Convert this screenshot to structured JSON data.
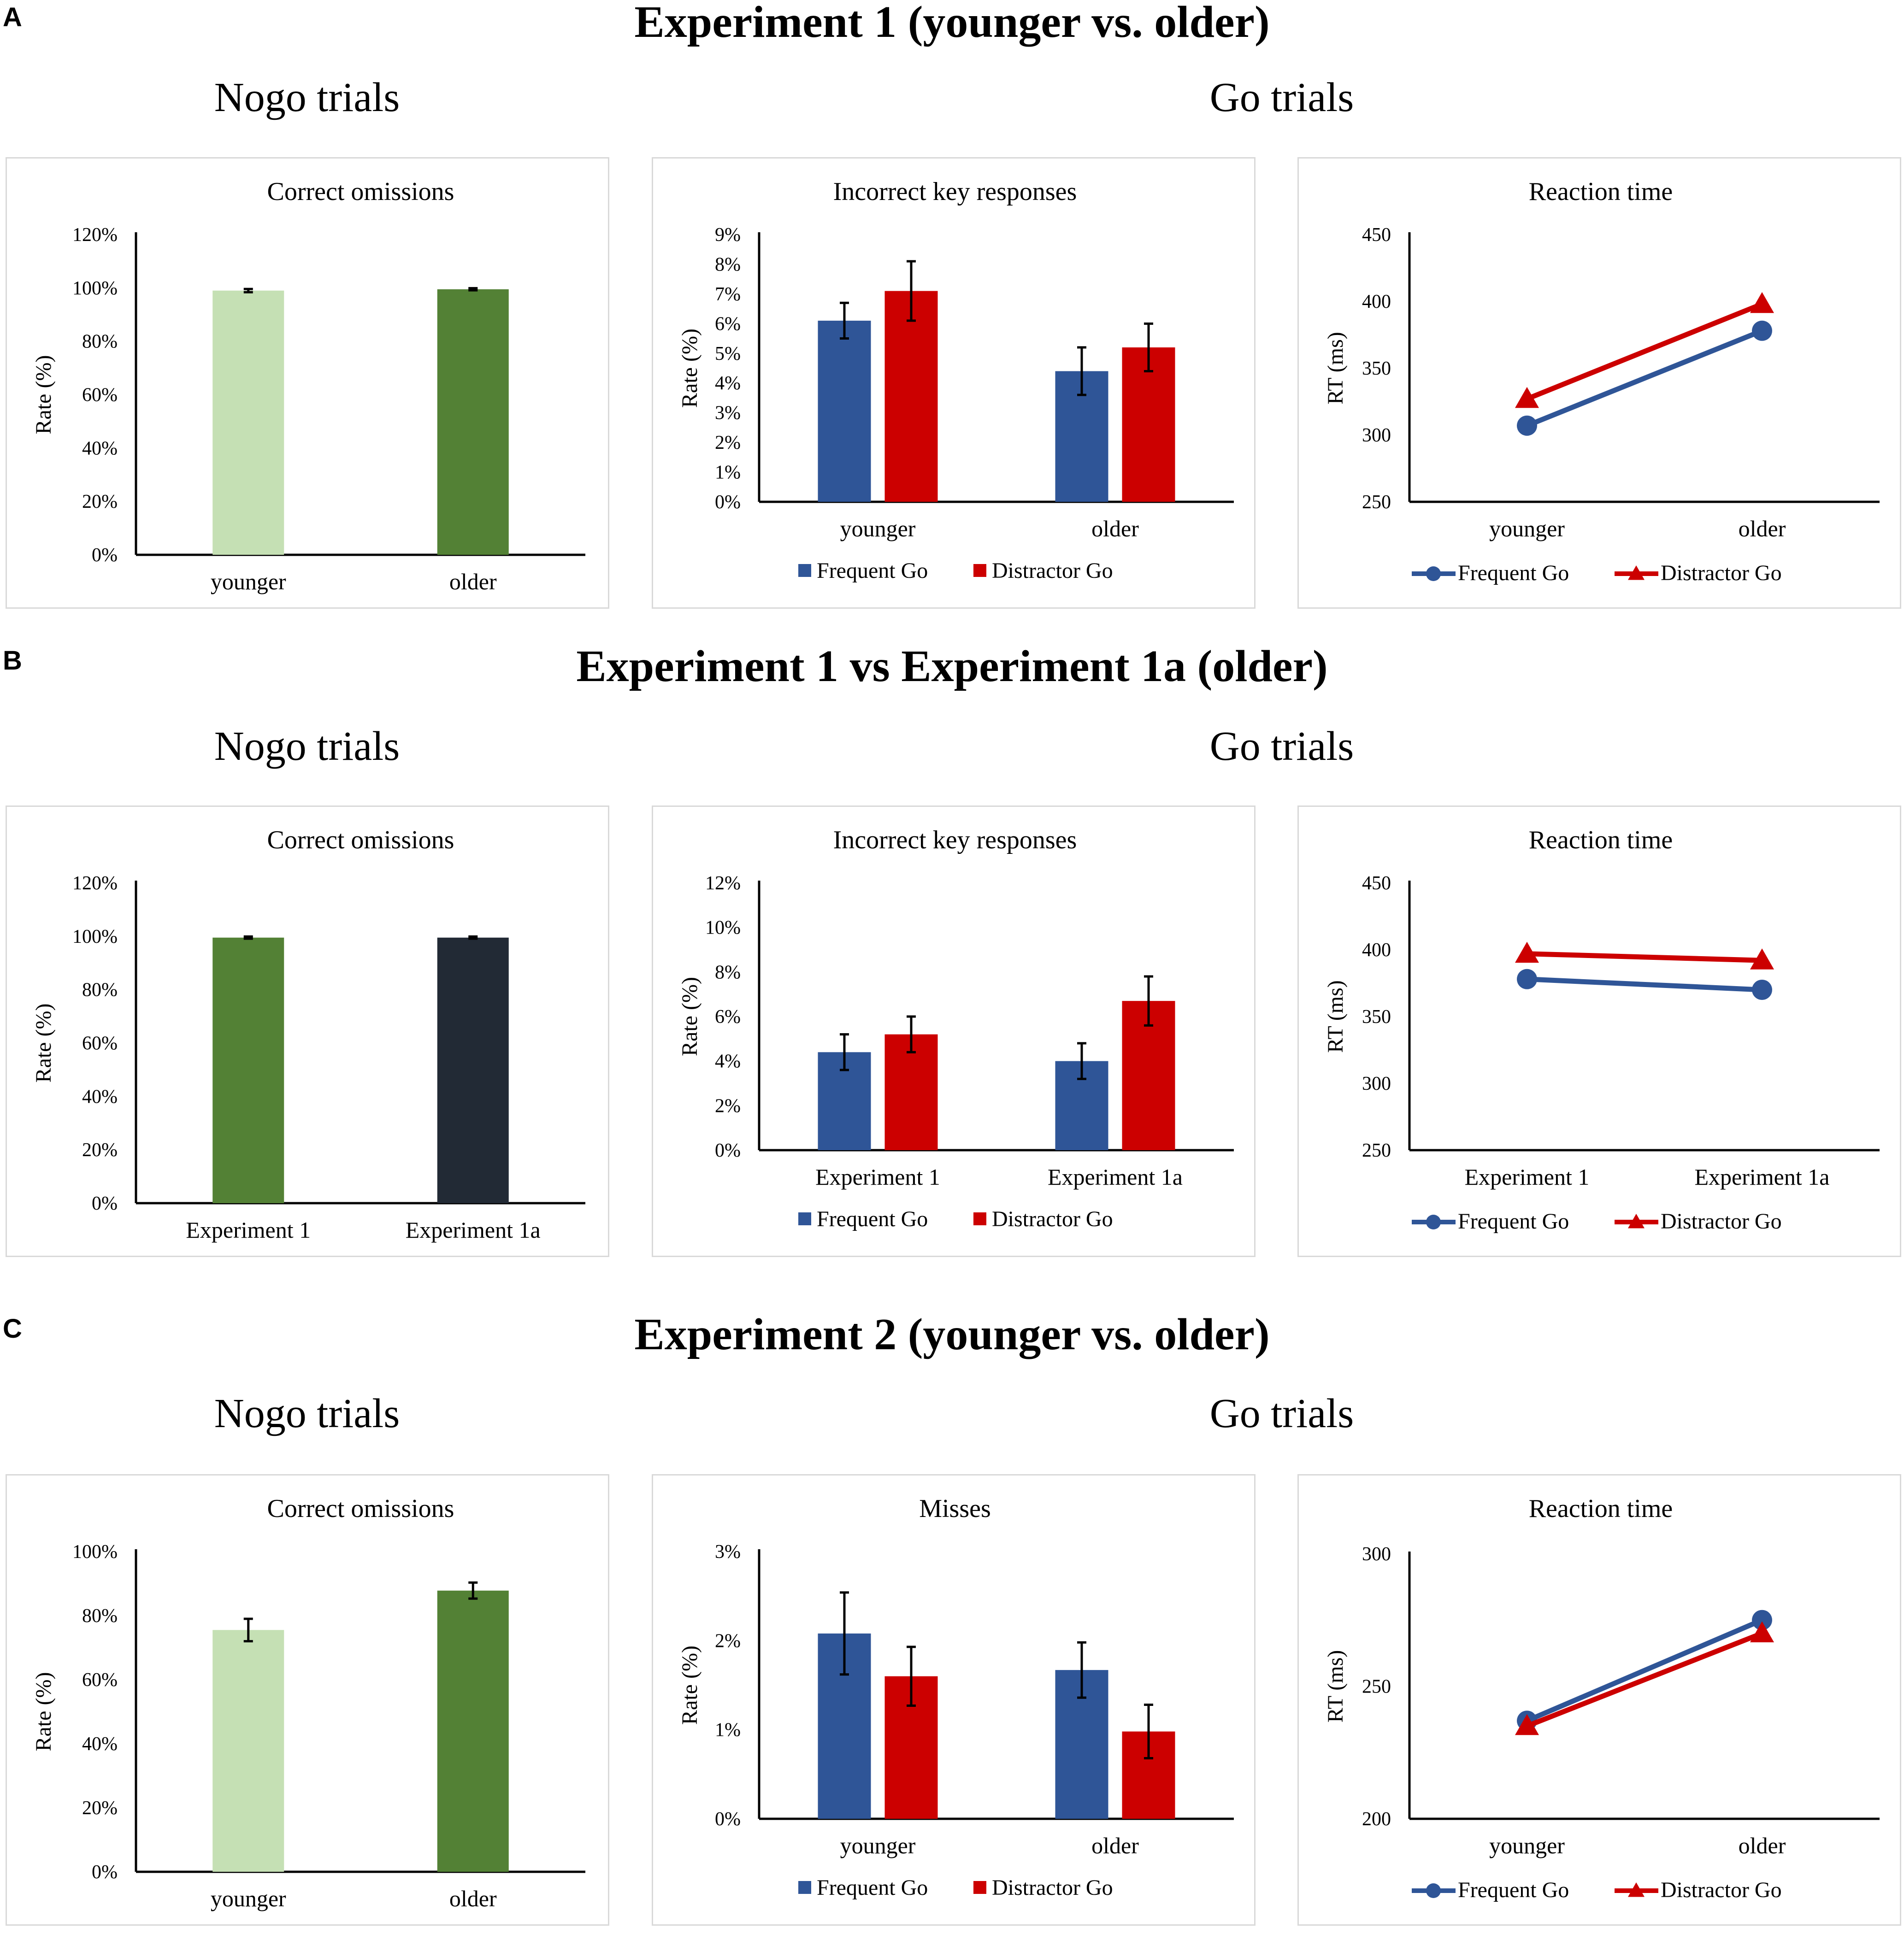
{
  "panels": [
    {
      "letter": "A",
      "title": "Experiment 1 (younger vs. older)",
      "nogo_heading": "Nogo trials",
      "go_heading": "Go trials"
    },
    {
      "letter": "B",
      "title": "Experiment 1 vs Experiment 1a (older)",
      "nogo_heading": "Nogo trials",
      "go_heading": "Go trials"
    },
    {
      "letter": "C",
      "title": "Experiment 2 (younger vs. older)",
      "nogo_heading": "Nogo trials",
      "go_heading": "Go trials"
    }
  ],
  "colors": {
    "frequent_go": "#2f5597",
    "distractor_go": "#cc0000",
    "light_green": "#c5e0b4",
    "dark_green": "#538135",
    "dark_navy": "#222a35"
  },
  "chart_data": [
    {
      "id": "A-omissions",
      "type": "bar",
      "title": "Correct omissions",
      "ylabel": "Rate (%)",
      "ylim": [
        0,
        120
      ],
      "ticks": [
        0,
        20,
        40,
        60,
        80,
        100,
        120
      ],
      "tick_labels": [
        "0%",
        "20%",
        "40%",
        "60%",
        "80%",
        "100%",
        "120%"
      ],
      "categories": [
        "younger",
        "older"
      ],
      "values": [
        99.0,
        99.5
      ],
      "errors": [
        0.6,
        0.4
      ],
      "bar_colors": [
        "#c5e0b4",
        "#538135"
      ]
    },
    {
      "id": "A-incorrect",
      "type": "bar",
      "title": "Incorrect key responses",
      "ylabel": "Rate (%)",
      "ylim": [
        0,
        9
      ],
      "ticks": [
        0,
        1,
        2,
        3,
        4,
        5,
        6,
        7,
        8,
        9
      ],
      "tick_labels": [
        "0%",
        "1%",
        "2%",
        "3%",
        "4%",
        "5%",
        "6%",
        "7%",
        "8%",
        "9%"
      ],
      "categories": [
        "younger",
        "older"
      ],
      "series": [
        {
          "name": "Frequent Go",
          "values": [
            6.1,
            4.4
          ],
          "errors": [
            0.6,
            0.8
          ]
        },
        {
          "name": "Distractor Go",
          "values": [
            7.1,
            5.2
          ],
          "errors": [
            1.0,
            0.8
          ]
        }
      ]
    },
    {
      "id": "A-rt",
      "type": "line",
      "title": "Reaction time",
      "ylabel": "RT (ms)",
      "ylim": [
        250,
        450
      ],
      "ticks": [
        250,
        300,
        350,
        400,
        450
      ],
      "tick_labels": [
        "250",
        "300",
        "350",
        "400",
        "450"
      ],
      "categories": [
        "younger",
        "older"
      ],
      "series": [
        {
          "name": "Frequent Go",
          "values": [
            307,
            378
          ]
        },
        {
          "name": "Distractor Go",
          "values": [
            327,
            398
          ]
        }
      ]
    },
    {
      "id": "B-omissions",
      "type": "bar",
      "title": "Correct omissions",
      "ylabel": "Rate (%)",
      "ylim": [
        0,
        120
      ],
      "ticks": [
        0,
        20,
        40,
        60,
        80,
        100,
        120
      ],
      "tick_labels": [
        "0%",
        "20%",
        "40%",
        "60%",
        "80%",
        "100%",
        "120%"
      ],
      "categories": [
        "Experiment 1",
        "Experiment 1a"
      ],
      "values": [
        99.5,
        99.5
      ],
      "errors": [
        0.4,
        0.4
      ],
      "bar_colors": [
        "#538135",
        "#222a35"
      ]
    },
    {
      "id": "B-incorrect",
      "type": "bar",
      "title": "Incorrect key responses",
      "ylabel": "Rate (%)",
      "ylim": [
        0,
        12
      ],
      "ticks": [
        0,
        2,
        4,
        6,
        8,
        10,
        12
      ],
      "tick_labels": [
        "0%",
        "2%",
        "4%",
        "6%",
        "8%",
        "10%",
        "12%"
      ],
      "categories": [
        "Experiment 1",
        "Experiment 1a"
      ],
      "series": [
        {
          "name": "Frequent Go",
          "values": [
            4.4,
            4.0
          ],
          "errors": [
            0.8,
            0.8
          ]
        },
        {
          "name": "Distractor Go",
          "values": [
            5.2,
            6.7
          ],
          "errors": [
            0.8,
            1.1
          ]
        }
      ]
    },
    {
      "id": "B-rt",
      "type": "line",
      "title": "Reaction time",
      "ylabel": "RT (ms)",
      "ylim": [
        250,
        450
      ],
      "ticks": [
        250,
        300,
        350,
        400,
        450
      ],
      "tick_labels": [
        "250",
        "300",
        "350",
        "400",
        "450"
      ],
      "categories": [
        "Experiment 1",
        "Experiment 1a"
      ],
      "series": [
        {
          "name": "Frequent Go",
          "values": [
            378,
            370
          ]
        },
        {
          "name": "Distractor Go",
          "values": [
            397,
            392
          ]
        }
      ]
    },
    {
      "id": "C-omissions",
      "type": "bar",
      "title": "Correct omissions",
      "ylabel": "Rate (%)",
      "ylim": [
        0,
        100
      ],
      "ticks": [
        0,
        20,
        40,
        60,
        80,
        100
      ],
      "tick_labels": [
        "0%",
        "20%",
        "40%",
        "60%",
        "80%",
        "100%"
      ],
      "categories": [
        "younger",
        "older"
      ],
      "values": [
        75.5,
        87.8
      ],
      "errors": [
        3.5,
        2.5
      ],
      "bar_colors": [
        "#c5e0b4",
        "#538135"
      ]
    },
    {
      "id": "C-misses",
      "type": "bar",
      "title": "Misses",
      "ylabel": "Rate (%)",
      "ylim": [
        0,
        3
      ],
      "ticks": [
        0,
        1,
        2,
        3
      ],
      "tick_labels": [
        "0%",
        "1%",
        "2%",
        "3%"
      ],
      "categories": [
        "younger",
        "older"
      ],
      "series": [
        {
          "name": "Frequent Go",
          "values": [
            2.08,
            1.67
          ],
          "errors": [
            0.46,
            0.31
          ]
        },
        {
          "name": "Distractor Go",
          "values": [
            1.6,
            0.98
          ],
          "errors": [
            0.33,
            0.3
          ]
        }
      ]
    },
    {
      "id": "C-rt",
      "type": "line",
      "title": "Reaction time",
      "ylabel": "RT (ms)",
      "ylim": [
        200,
        300
      ],
      "ticks": [
        200,
        250,
        300
      ],
      "tick_labels": [
        "200",
        "250",
        "300"
      ],
      "categories": [
        "younger",
        "older"
      ],
      "series": [
        {
          "name": "Frequent Go",
          "values": [
            237,
            275
          ]
        },
        {
          "name": "Distractor Go",
          "values": [
            235,
            270
          ]
        }
      ]
    }
  ]
}
